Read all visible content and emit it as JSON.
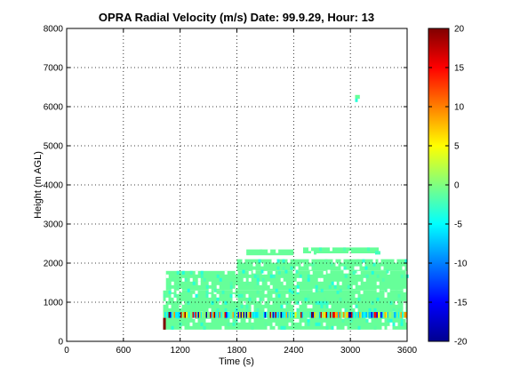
{
  "chart_data": {
    "type": "heatmap",
    "title": "OPRA Radial Velocity (m/s)  Date: 99.9.29, Hour: 13",
    "xlabel": "Time (s)",
    "ylabel": "Height (m AGL)",
    "xlim": [
      0,
      3600
    ],
    "ylim": [
      0,
      8000
    ],
    "xticks": [
      0,
      600,
      1200,
      1800,
      2400,
      3000,
      3600
    ],
    "xtick_labels": [
      "0",
      "600",
      "1200",
      "1800",
      "2400",
      "3000",
      "3600"
    ],
    "yticks": [
      0,
      1000,
      2000,
      3000,
      4000,
      5000,
      6000,
      7000,
      8000
    ],
    "ytick_labels": [
      "0",
      "1000",
      "2000",
      "3000",
      "4000",
      "5000",
      "6000",
      "7000",
      "8000"
    ],
    "grid": true,
    "colorbar": {
      "range": [
        -20,
        20
      ],
      "ticks": [
        -20,
        -15,
        -10,
        -5,
        0,
        5,
        10,
        15,
        20
      ],
      "tick_labels": [
        "-20",
        "-15",
        "-10",
        "-5",
        "0",
        "5",
        "10",
        "15",
        "20"
      ],
      "colormap": "jet"
    },
    "regions": [
      {
        "x": [
          1020,
          3600
        ],
        "y": [
          300,
          1300
        ],
        "value": -1
      },
      {
        "x": [
          1050,
          3600
        ],
        "y": [
          1300,
          1800
        ],
        "value": -1
      },
      {
        "x": [
          1800,
          3600
        ],
        "y": [
          1800,
          2100
        ],
        "value": -1
      },
      {
        "x": [
          1900,
          2400
        ],
        "y": [
          2200,
          2350
        ],
        "value": -1
      },
      {
        "x": [
          2500,
          3300
        ],
        "y": [
          2250,
          2400
        ],
        "value": -1
      },
      {
        "x": [
          3050,
          3100
        ],
        "y": [
          6200,
          6300
        ],
        "value": -1
      }
    ],
    "strong_layer": {
      "x": [
        1020,
        3600
      ],
      "y": [
        600,
        750
      ],
      "range": [
        -20,
        20
      ]
    }
  }
}
